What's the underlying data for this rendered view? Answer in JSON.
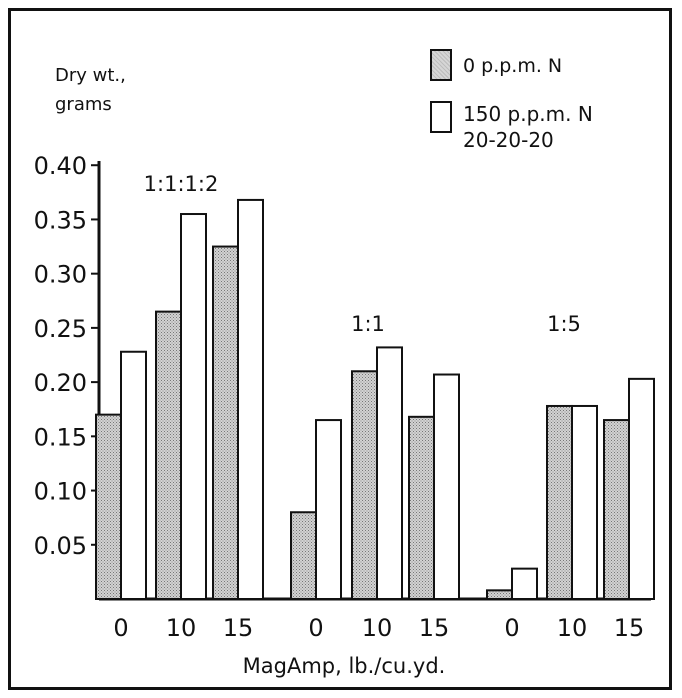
{
  "chart_data": {
    "type": "bar",
    "ylabel": "Dry wt.,\ngrams",
    "xlabel": "MagAmp, lb./cu.yd.",
    "ylim": [
      0,
      0.45
    ],
    "yticks": [
      "0.05",
      "0.10",
      "0.15",
      "0.20",
      "0.25",
      "0.30",
      "0.35",
      "0.40"
    ],
    "grid": false,
    "legend_position": "top-right",
    "groups": [
      {
        "label": "1:1:1:2",
        "categories": [
          "0",
          "10",
          "15"
        ]
      },
      {
        "label": "1:1",
        "categories": [
          "0",
          "10",
          "15"
        ]
      },
      {
        "label": "1:5",
        "categories": [
          "0",
          "10",
          "15"
        ]
      }
    ],
    "series": [
      {
        "name": "0 p.p.m. N",
        "fill": "#c8c8c8",
        "values": [
          0.17,
          0.265,
          0.325,
          0.08,
          0.21,
          0.168,
          0.008,
          0.178,
          0.165
        ]
      },
      {
        "name": "150 p.p.m. N\n20-20-20",
        "fill": "#ffffff",
        "values": [
          0.228,
          0.355,
          0.368,
          0.165,
          0.232,
          0.207,
          0.028,
          0.178,
          0.203
        ]
      }
    ]
  }
}
